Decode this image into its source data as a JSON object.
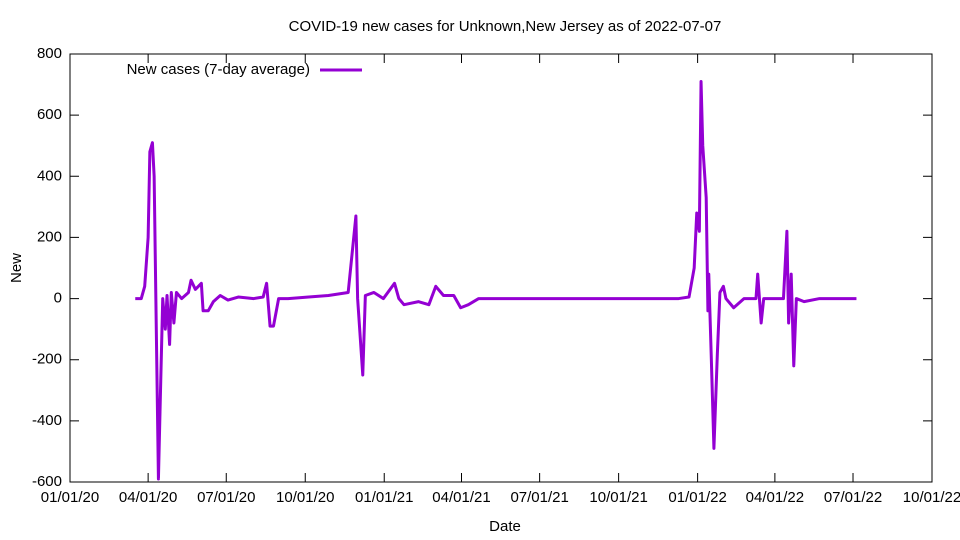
{
  "chart_data": {
    "type": "line",
    "title": "COVID-19 new cases for Unknown,New Jersey as of 2022-07-07",
    "xlabel": "Date",
    "ylabel": "New",
    "legend": "top-left",
    "x": [
      "2020-03-17",
      "2020-03-24",
      "2020-03-28",
      "2020-04-01",
      "2020-04-03",
      "2020-04-06",
      "2020-04-08",
      "2020-04-10",
      "2020-04-13",
      "2020-04-15",
      "2020-04-18",
      "2020-04-21",
      "2020-04-23",
      "2020-04-26",
      "2020-04-28",
      "2020-05-01",
      "2020-05-04",
      "2020-05-10",
      "2020-05-18",
      "2020-05-21",
      "2020-05-26",
      "2020-06-02",
      "2020-06-04",
      "2020-06-10",
      "2020-06-16",
      "2020-06-24",
      "2020-07-03",
      "2020-07-15",
      "2020-08-02",
      "2020-08-13",
      "2020-08-17",
      "2020-08-21",
      "2020-08-25",
      "2020-08-31",
      "2020-09-11",
      "2020-10-05",
      "2020-10-28",
      "2020-11-20",
      "2020-11-29",
      "2020-12-01",
      "2020-12-07",
      "2020-12-10",
      "2020-12-20",
      "2020-12-31",
      "2021-01-13",
      "2021-01-18",
      "2021-01-24",
      "2021-02-10",
      "2021-02-22",
      "2021-03-02",
      "2021-03-11",
      "2021-03-23",
      "2021-03-31",
      "2021-04-09",
      "2021-04-21",
      "2021-05-14",
      "2021-06-14",
      "2021-07-24",
      "2021-09-02",
      "2021-10-12",
      "2021-11-21",
      "2021-12-10",
      "2021-12-22",
      "2021-12-28",
      "2021-12-31",
      "2022-01-03",
      "2022-01-05",
      "2022-01-07",
      "2022-01-11",
      "2022-01-13",
      "2022-01-14",
      "2022-01-17",
      "2022-01-20",
      "2022-01-24",
      "2022-01-27",
      "2022-01-31",
      "2022-02-03",
      "2022-02-12",
      "2022-02-24",
      "2022-03-10",
      "2022-03-12",
      "2022-03-16",
      "2022-03-19",
      "2022-04-11",
      "2022-04-15",
      "2022-04-17",
      "2022-04-20",
      "2022-04-23",
      "2022-04-26",
      "2022-05-05",
      "2022-05-23",
      "2022-06-09",
      "2022-07-05"
    ],
    "series": [
      {
        "name": "New cases (7-day average)",
        "color": "#9400d3",
        "values": [
          0,
          0,
          40,
          200,
          480,
          510,
          400,
          0,
          -590,
          -350,
          0,
          -100,
          10,
          -150,
          20,
          -80,
          20,
          0,
          20,
          60,
          30,
          50,
          -40,
          -40,
          -10,
          10,
          -5,
          5,
          0,
          5,
          50,
          -90,
          -90,
          0,
          0,
          5,
          10,
          20,
          270,
          0,
          -250,
          10,
          20,
          0,
          50,
          0,
          -20,
          -10,
          -20,
          40,
          10,
          10,
          -30,
          -20,
          0,
          0,
          0,
          0,
          0,
          0,
          0,
          0,
          5,
          100,
          280,
          220,
          710,
          500,
          330,
          -40,
          80,
          -200,
          -490,
          -180,
          20,
          40,
          0,
          -30,
          0,
          0,
          80,
          -80,
          0,
          0,
          220,
          -80,
          80,
          -220,
          0,
          -10,
          0,
          0,
          0
        ]
      }
    ],
    "xlim": [
      "2020-01-01",
      "2022-10-01"
    ],
    "xticks": [
      {
        "value": "2020-01-01",
        "label": "01/01/20"
      },
      {
        "value": "2020-04-01",
        "label": "04/01/20"
      },
      {
        "value": "2020-07-01",
        "label": "07/01/20"
      },
      {
        "value": "2020-10-01",
        "label": "10/01/20"
      },
      {
        "value": "2021-01-01",
        "label": "01/01/21"
      },
      {
        "value": "2021-04-01",
        "label": "04/01/21"
      },
      {
        "value": "2021-07-01",
        "label": "07/01/21"
      },
      {
        "value": "2021-10-01",
        "label": "10/01/21"
      },
      {
        "value": "2022-01-01",
        "label": "01/01/22"
      },
      {
        "value": "2022-04-01",
        "label": "04/01/22"
      },
      {
        "value": "2022-07-01",
        "label": "07/01/22"
      },
      {
        "value": "2022-10-01",
        "label": "10/01/22"
      }
    ],
    "ylim": [
      -600,
      800
    ],
    "yticks": [
      -600,
      -400,
      -200,
      0,
      200,
      400,
      600,
      800
    ]
  }
}
